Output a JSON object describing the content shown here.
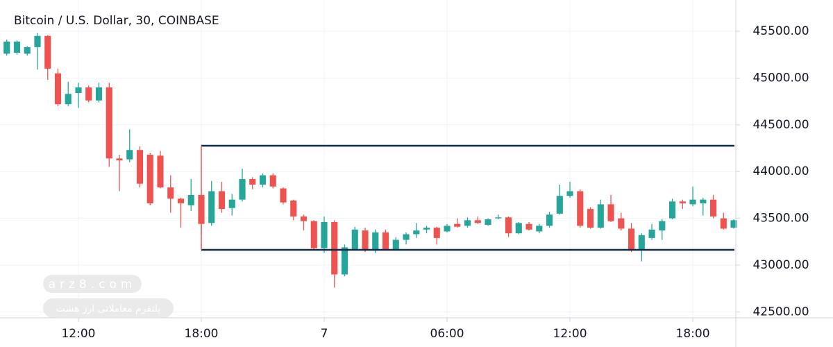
{
  "chart_data": {
    "type": "candlestick",
    "title": "Bitcoin / U.S. Dollar, 30, COINBASE",
    "up_color": "#26a69a",
    "down_color": "#ef5350",
    "grid": true,
    "xlim": [
      8.17,
      44.1
    ],
    "ylim": [
      42436,
      45834
    ],
    "xticks": [
      {
        "value": 12,
        "label": "12:00"
      },
      {
        "value": 18,
        "label": "18:00"
      },
      {
        "value": 24,
        "label": "7"
      },
      {
        "value": 30,
        "label": "06:00"
      },
      {
        "value": 36,
        "label": "12:00"
      },
      {
        "value": 42,
        "label": "18:00"
      }
    ],
    "yticks": [
      {
        "value": 42500,
        "label": "42500.00"
      },
      {
        "value": 43000,
        "label": "43000.00"
      },
      {
        "value": 43500,
        "label": "43500.00"
      },
      {
        "value": 44000,
        "label": "44000.00"
      },
      {
        "value": 44500,
        "label": "44500.00"
      },
      {
        "value": 45000,
        "label": "45000.00"
      },
      {
        "value": 45500,
        "label": "45500.00"
      }
    ],
    "x": [
      8.5,
      9,
      9.5,
      10,
      10.5,
      11,
      11.5,
      12,
      12.5,
      13,
      13.5,
      14,
      14.5,
      15,
      15.5,
      16,
      16.5,
      17,
      17.5,
      18,
      18.5,
      19,
      19.5,
      20,
      20.5,
      21,
      21.5,
      22,
      22.5,
      23,
      23.5,
      24,
      24.5,
      25,
      25.5,
      26,
      26.5,
      27,
      27.5,
      28,
      28.5,
      29,
      29.5,
      30,
      30.5,
      31,
      31.5,
      32,
      32.5,
      33,
      33.5,
      34,
      34.5,
      35,
      35.5,
      36,
      36.5,
      37,
      37.5,
      38,
      38.5,
      39,
      39.5,
      40,
      40.5,
      41,
      41.5,
      42,
      42.5,
      43,
      43.5,
      44
    ],
    "open": [
      45260,
      45270,
      45260,
      45330,
      45450,
      45050,
      44720,
      44840,
      44900,
      44760,
      44900,
      44140,
      44130,
      44230,
      44180,
      44170,
      43830,
      43710,
      43640,
      43750,
      43450,
      43790,
      43610,
      43700,
      43920,
      43860,
      43960,
      43820,
      43690,
      43520,
      43470,
      43180,
      43460,
      42900,
      43170,
      43370,
      43170,
      43350,
      43170,
      43270,
      43330,
      43380,
      43400,
      43360,
      43440,
      43420,
      43480,
      43430,
      43500,
      43510,
      43340,
      43440,
      43360,
      43420,
      43550,
      43740,
      43790,
      43600,
      43400,
      43650,
      43500,
      43390,
      43160,
      43290,
      43370,
      43500,
      43680,
      43650,
      43660,
      43700,
      43500,
      43400
    ],
    "high": [
      45410,
      45400,
      45340,
      45480,
      45460,
      45100,
      44960,
      44950,
      44920,
      44950,
      44950,
      44180,
      44450,
      44270,
      44200,
      44220,
      43960,
      43720,
      43920,
      43760,
      43900,
      43890,
      43760,
      44030,
      43940,
      43980,
      43980,
      43830,
      43700,
      43540,
      43480,
      43520,
      43480,
      43220,
      43410,
      43400,
      43380,
      43380,
      43300,
      43350,
      43450,
      43420,
      43410,
      43440,
      43500,
      43510,
      43520,
      43500,
      43540,
      43520,
      43460,
      43460,
      43440,
      43570,
      43860,
      43890,
      43810,
      43620,
      43700,
      43750,
      43560,
      43450,
      43340,
      43440,
      43490,
      43710,
      43700,
      43840,
      43720,
      43750,
      43560,
      43490
    ],
    "low": [
      45240,
      45250,
      45240,
      45090,
      44980,
      44700,
      44700,
      44680,
      44740,
      44740,
      44050,
      43790,
      44100,
      43830,
      43640,
      43820,
      43560,
      43400,
      43580,
      43330,
      43420,
      43560,
      43530,
      43680,
      43810,
      43830,
      43820,
      43650,
      43480,
      43370,
      43160,
      43130,
      42760,
      42880,
      43160,
      43140,
      43130,
      43160,
      43160,
      43220,
      43290,
      43340,
      43220,
      43350,
      43400,
      43400,
      43440,
      43420,
      43490,
      43300,
      43330,
      43370,
      43340,
      43400,
      43540,
      43720,
      43400,
      43390,
      43390,
      43460,
      43370,
      43140,
      43040,
      43270,
      43270,
      43490,
      43600,
      43630,
      43530,
      43500,
      43380,
      43390
    ],
    "close": [
      45390,
      45390,
      45330,
      45450,
      45100,
      44720,
      44830,
      44900,
      44760,
      44900,
      44140,
      44120,
      44230,
      43870,
      43660,
      43830,
      43710,
      43660,
      43750,
      43440,
      43790,
      43600,
      43700,
      43920,
      43860,
      43960,
      43840,
      43670,
      43520,
      43470,
      43180,
      43460,
      42900,
      43190,
      43380,
      43170,
      43350,
      43170,
      43270,
      43330,
      43370,
      43400,
      43290,
      43420,
      43410,
      43480,
      43450,
      43490,
      43510,
      43340,
      43450,
      43380,
      43420,
      43540,
      43740,
      43790,
      43420,
      43400,
      43650,
      43470,
      43390,
      43170,
      43320,
      43380,
      43470,
      43680,
      43660,
      43700,
      43700,
      43520,
      43390,
      43480
    ],
    "box": {
      "x0": 18,
      "y0": 43163,
      "y1": 44276,
      "color": "#0d2a4a"
    },
    "watermark": {
      "site": "arz8.com",
      "slogan": "پلتفرم معاملاتی ارز هشت"
    }
  }
}
